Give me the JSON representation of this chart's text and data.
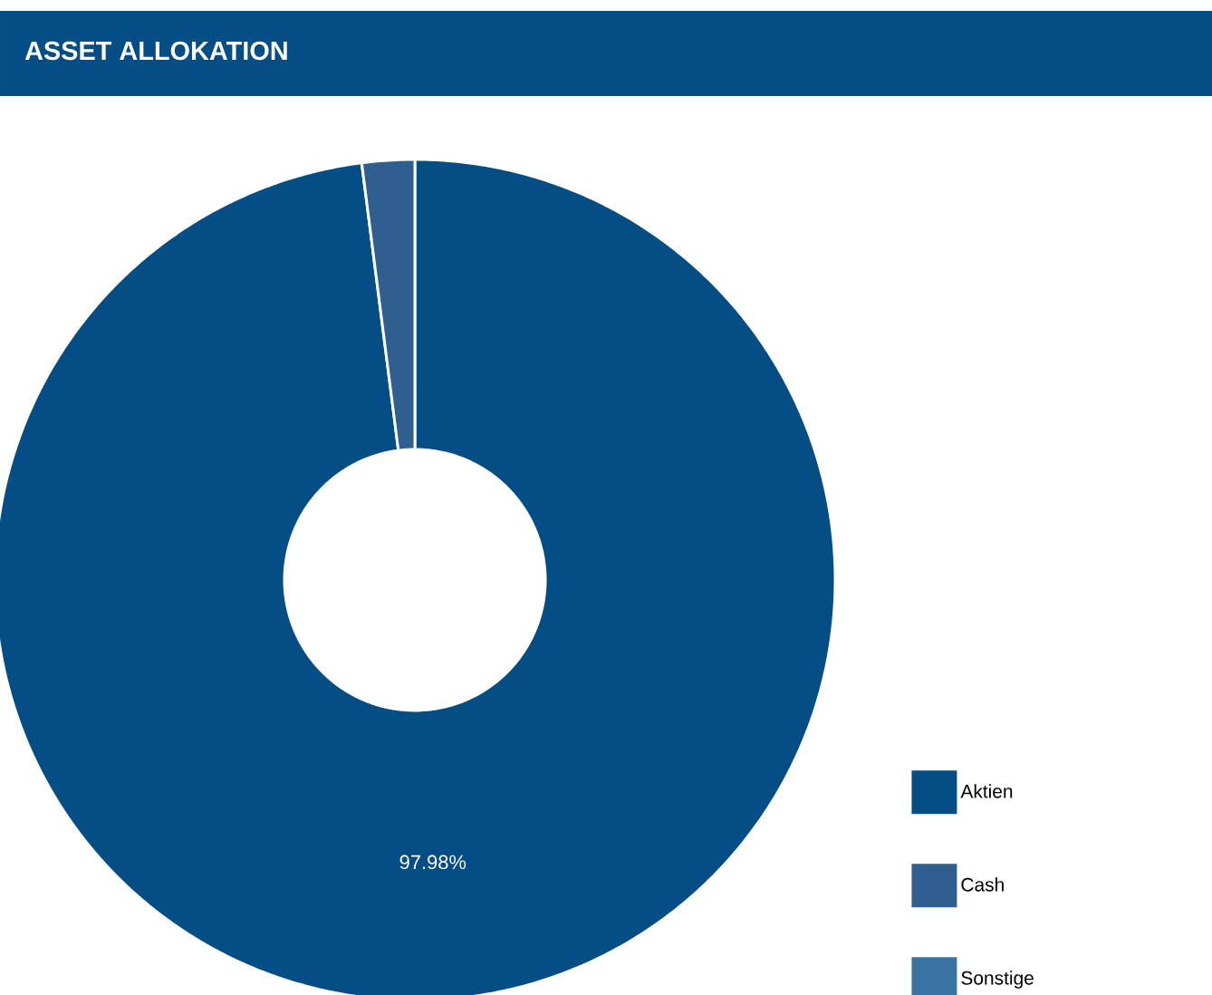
{
  "chart_data": {
    "type": "donut",
    "title": "ASSET ALLOKATION",
    "categories": [
      "Aktien",
      "Cash",
      "Sonstige"
    ],
    "values": [
      97.98,
      2.02,
      0
    ],
    "colors": [
      "#044d85",
      "#2e5f8e",
      "#3b73a0"
    ],
    "value_labels": [
      "97.98%",
      null,
      null
    ],
    "legend": "bottom right"
  }
}
